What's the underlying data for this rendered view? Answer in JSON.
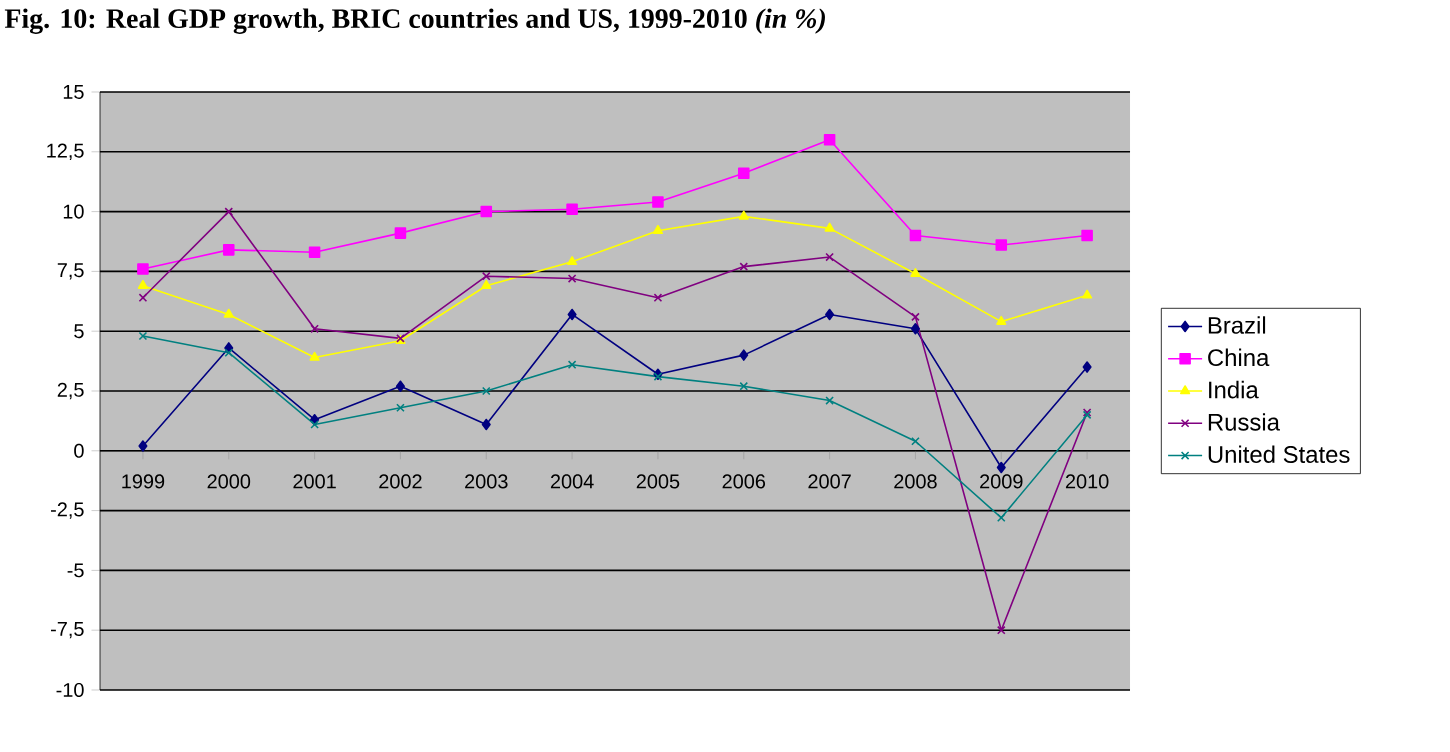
{
  "chart_data": {
    "type": "line",
    "title": "Fig. 10: Real GDP growth, BRIC countries and US, 1999-2010 *(in %)*",
    "categories": [
      "1999",
      "2000",
      "2001",
      "2002",
      "2003",
      "2004",
      "2005",
      "2006",
      "2007",
      "2008",
      "2009",
      "2010"
    ],
    "series": [
      {
        "name": "Brazil",
        "color": "#000080",
        "marker": "diamond",
        "values": [
          0.2,
          4.3,
          1.3,
          2.7,
          1.1,
          5.7,
          3.2,
          4.0,
          5.7,
          5.1,
          -0.7,
          3.5
        ]
      },
      {
        "name": "China",
        "color": "#ff00ff",
        "marker": "square",
        "values": [
          7.6,
          8.4,
          8.3,
          9.1,
          10.0,
          10.1,
          10.4,
          11.6,
          13.0,
          9.0,
          8.6,
          9.0
        ]
      },
      {
        "name": "India",
        "color": "#ffff00",
        "marker": "triangle",
        "values": [
          6.9,
          5.7,
          3.9,
          4.6,
          6.9,
          7.9,
          9.2,
          9.8,
          9.3,
          7.4,
          5.4,
          6.5
        ]
      },
      {
        "name": "Russia",
        "color": "#800080",
        "marker": "cross",
        "values": [
          6.4,
          10.0,
          5.1,
          4.7,
          7.3,
          7.2,
          6.4,
          7.7,
          8.1,
          5.6,
          -7.5,
          1.6
        ]
      },
      {
        "name": "United States",
        "color": "#008080",
        "marker": "cross",
        "values": [
          4.8,
          4.1,
          1.1,
          1.8,
          2.5,
          3.6,
          3.1,
          2.7,
          2.1,
          0.4,
          -2.8,
          1.5
        ]
      }
    ],
    "ylim": [
      -10,
      15
    ],
    "yticks": [
      -10,
      {
        "value": -7.5,
        "label": "-7,5"
      },
      -5,
      {
        "value": -2.5,
        "label": "-2,5"
      },
      0,
      {
        "value": 2.5,
        "label": "2,5"
      },
      5,
      {
        "value": 7.5,
        "label": "7,5"
      },
      10,
      {
        "value": 12.5,
        "label": "12,5"
      },
      15
    ],
    "grid": "y",
    "legend": "right",
    "line_style": "solid"
  }
}
